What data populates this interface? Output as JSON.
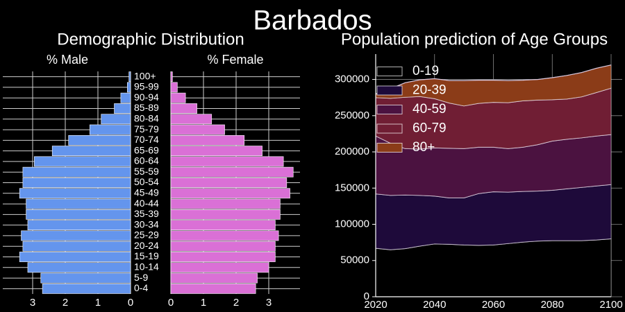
{
  "title": "Barbados",
  "pyramid": {
    "title": "Demographic Distribution",
    "male_label": "% Male",
    "female_label": "% Female",
    "male_color": "#6495ED",
    "female_color": "#DA70D6",
    "male_ticks": [
      "3",
      "2",
      "1",
      "0"
    ],
    "female_ticks": [
      "0",
      "1",
      "2",
      "3"
    ]
  },
  "area": {
    "title": "Population prediction of Age Groups",
    "x_ticks": [
      "2020",
      "2040",
      "2060",
      "2080",
      "2100"
    ],
    "y_ticks": [
      "0",
      "50000",
      "100000",
      "150000",
      "200000",
      "250000",
      "300000"
    ]
  },
  "chart_data": [
    {
      "type": "bar",
      "orientation": "horizontal-pyramid",
      "categories": [
        "0-4",
        "5-9",
        "10-14",
        "15-19",
        "20-24",
        "25-29",
        "30-34",
        "35-39",
        "40-44",
        "45-49",
        "50-54",
        "55-59",
        "60-64",
        "65-69",
        "70-74",
        "75-79",
        "80-84",
        "85-89",
        "90-94",
        "95-99",
        "100+"
      ],
      "series": [
        {
          "name": "% Male",
          "values": [
            2.7,
            2.75,
            3.15,
            3.4,
            3.3,
            3.35,
            3.15,
            3.2,
            3.2,
            3.4,
            3.3,
            3.3,
            2.95,
            2.4,
            1.9,
            1.25,
            0.9,
            0.5,
            0.3,
            0.1,
            0.05
          ]
        },
        {
          "name": "% Female",
          "values": [
            2.6,
            2.65,
            3.0,
            3.2,
            3.2,
            3.3,
            3.2,
            3.35,
            3.35,
            3.65,
            3.55,
            3.75,
            3.45,
            2.8,
            2.25,
            1.65,
            1.25,
            0.8,
            0.45,
            0.2,
            0.05
          ]
        }
      ],
      "xlim": [
        0,
        4
      ]
    },
    {
      "type": "area",
      "stacked": true,
      "x": [
        2020,
        2025,
        2030,
        2035,
        2040,
        2045,
        2050,
        2055,
        2060,
        2065,
        2070,
        2075,
        2080,
        2085,
        2090,
        2095,
        2100
      ],
      "series": [
        {
          "name": "0-19",
          "color": "#000000",
          "values": [
            67000,
            65000,
            66500,
            70000,
            73000,
            72500,
            71500,
            71000,
            71500,
            73500,
            75500,
            77000,
            77500,
            77500,
            77500,
            78500,
            80000
          ]
        },
        {
          "name": "20-39",
          "color": "#1e0a3a",
          "values": [
            75000,
            75000,
            74000,
            70000,
            66000,
            64000,
            65000,
            71500,
            73500,
            71000,
            70000,
            69000,
            69500,
            71500,
            73500,
            74500,
            75000
          ]
        },
        {
          "name": "40-59",
          "color": "#4b1240",
          "values": [
            80000,
            72000,
            64000,
            64000,
            66500,
            68500,
            68000,
            64000,
            61500,
            60000,
            61000,
            64000,
            68000,
            68500,
            68500,
            69000,
            69000
          ]
        },
        {
          "name": "60-79",
          "color": "#701e34",
          "values": [
            53000,
            62000,
            71000,
            72500,
            68000,
            62500,
            59000,
            60500,
            62000,
            63500,
            64000,
            61500,
            57000,
            55500,
            56500,
            60000,
            64000
          ]
        },
        {
          "name": "80+",
          "color": "#8b3c18",
          "values": [
            5000,
            13000,
            20000,
            23000,
            27500,
            31000,
            35000,
            32000,
            30500,
            30500,
            28500,
            28500,
            30500,
            32500,
            33500,
            33500,
            32000
          ]
        }
      ],
      "xlim": [
        2020,
        2100
      ],
      "ylim": [
        0,
        335000
      ],
      "legend": "top-left",
      "grid": true
    }
  ]
}
